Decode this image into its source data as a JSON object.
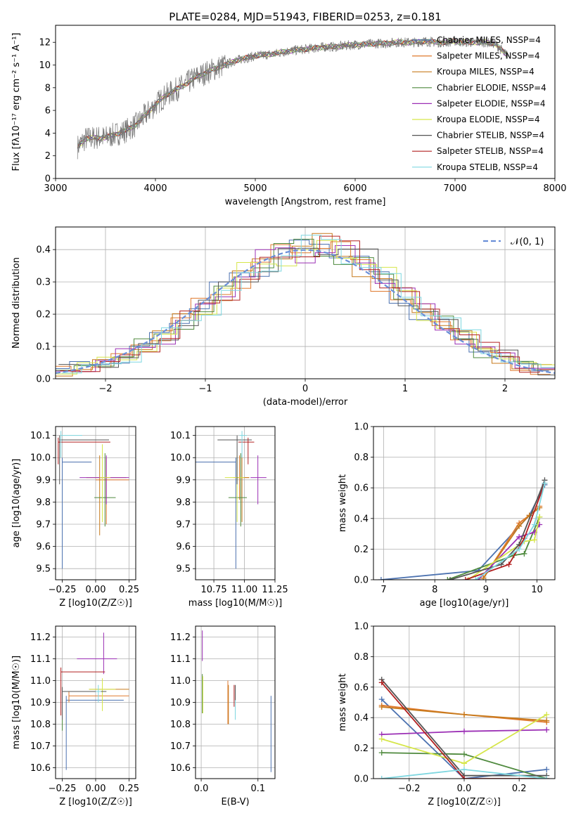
{
  "figure_title": "PLATE=0284, MJD=51943, FIBERID=0253, z=0.181",
  "colors": {
    "Chabrier MILES": "#4c72b0",
    "Salpeter MILES": "#e07a2f",
    "Kroupa MILES": "#c77a1c",
    "Chabrier ELODIE": "#4f8a3e",
    "Salpeter ELODIE": "#9b2fb5",
    "Kroupa ELODIE": "#d6e64a",
    "Chabrier STELIB": "#555555",
    "Salpeter STELIB": "#b22020",
    "Kroupa STELIB": "#7fd7e0",
    "normal_curve": "#6a8fd8",
    "grid": "#b0b0b0"
  },
  "chart_data": [
    {
      "id": "spectrum",
      "type": "line",
      "title": "PLATE=0284, MJD=51943, FIBERID=0253, z=0.181",
      "xlabel": "wavelength [Angstrom, rest frame]",
      "ylabel": "Flux [fλ10⁻¹⁷ erg cm⁻² s⁻¹ A⁻¹]",
      "xlim": [
        3000,
        8000
      ],
      "ylim": [
        0,
        13.5
      ],
      "xticks": [
        "3000",
        "4000",
        "5000",
        "6000",
        "7000",
        "8000"
      ],
      "yticks": [
        "0",
        "2",
        "4",
        "6",
        "8",
        "10",
        "12"
      ],
      "legend_position": "right",
      "legend": [
        "Chabrier MILES, NSSP=4",
        "Salpeter MILES, NSSP=4",
        "Kroupa MILES, NSSP=4",
        "Chabrier ELODIE, NSSP=4",
        "Salpeter ELODIE, NSSP=4",
        "Kroupa ELODIE, NSSP=4",
        "Chabrier STELIB, NSSP=4",
        "Salpeter STELIB, NSSP=4",
        "Kroupa STELIB, NSSP=4"
      ],
      "data_curve": {
        "x": [
          3220,
          3300,
          3400,
          3500,
          3600,
          3700,
          3800,
          3900,
          4000,
          4100,
          4200,
          4300,
          4400,
          4500,
          4600,
          4700,
          4800,
          4900,
          5000,
          5100,
          5200,
          5300,
          5400,
          5500,
          5600,
          5700,
          5800,
          5900,
          6000,
          6100,
          6200,
          6300,
          6400,
          6500,
          6600,
          6700,
          6800,
          6900,
          7000,
          7100,
          7200,
          7300,
          7400,
          7500,
          7530
        ],
        "y": [
          2.8,
          3.5,
          3.6,
          3.6,
          3.9,
          4.2,
          4.7,
          5.6,
          6.5,
          7.3,
          7.8,
          8.3,
          8.9,
          9.3,
          9.7,
          10.0,
          10.4,
          10.6,
          10.8,
          10.9,
          11.0,
          11.2,
          11.3,
          11.4,
          11.5,
          11.6,
          11.6,
          11.7,
          11.8,
          11.8,
          11.9,
          11.9,
          12.0,
          12.0,
          12.0,
          12.1,
          12.0,
          12.0,
          12.1,
          12.0,
          12.0,
          12.0,
          11.9,
          11.0,
          10.9
        ]
      }
    },
    {
      "id": "residuals",
      "type": "step",
      "xlabel": "(data-model)/error",
      "ylabel": "Normed distribution",
      "xlim": [
        -2.5,
        2.5
      ],
      "ylim": [
        0,
        0.47
      ],
      "xticks": [
        "−2",
        "−1",
        "0",
        "1",
        "2"
      ],
      "yticks": [
        "0.0",
        "0.1",
        "0.2",
        "0.3",
        "0.4"
      ],
      "legend_position": "top-right",
      "legend": [
        "𝒩(0, 1)"
      ],
      "bin_edges": [
        -2.5,
        -2.3,
        -2.1,
        -1.9,
        -1.7,
        -1.5,
        -1.3,
        -1.1,
        -0.9,
        -0.7,
        -0.5,
        -0.3,
        -0.1,
        0.1,
        0.3,
        0.5,
        0.7,
        0.9,
        1.1,
        1.3,
        1.5,
        1.7,
        1.9,
        2.1,
        2.3,
        2.5
      ],
      "hist_mean": [
        0.025,
        0.035,
        0.05,
        0.07,
        0.1,
        0.13,
        0.18,
        0.22,
        0.27,
        0.32,
        0.36,
        0.39,
        0.4,
        0.41,
        0.39,
        0.36,
        0.31,
        0.26,
        0.21,
        0.17,
        0.13,
        0.09,
        0.07,
        0.04,
        0.03
      ]
    },
    {
      "id": "age_vs_Z",
      "type": "errorbar",
      "xlabel": "Z [log10(Z/Z☉)]",
      "ylabel": "age  [log10(age/yr)]",
      "xlim": [
        -0.3,
        0.3
      ],
      "ylim": [
        9.45,
        10.14
      ],
      "xticks": [
        "−0.25",
        "0.00",
        "0.25"
      ],
      "yticks": [
        "9.5",
        "9.6",
        "9.7",
        "9.8",
        "9.9",
        "10.0",
        "10.1"
      ],
      "points": [
        {
          "model": "Chabrier MILES",
          "x": -0.25,
          "xerr": [
            0.0,
            0.22
          ],
          "y": 9.98,
          "yerr": [
            0.48,
            0.02
          ]
        },
        {
          "model": "Salpeter MILES",
          "x": 0.08,
          "xerr": [
            0.08,
            0.17
          ],
          "y": 9.9,
          "yerr": [
            0.2,
            0.1
          ]
        },
        {
          "model": "Kroupa MILES",
          "x": 0.03,
          "xerr": [
            0.1,
            0.2
          ],
          "y": 9.91,
          "yerr": [
            0.26,
            0.1
          ]
        },
        {
          "model": "Chabrier ELODIE",
          "x": 0.07,
          "xerr": [
            0.08,
            0.08
          ],
          "y": 9.82,
          "yerr": [
            0.13,
            0.2
          ]
        },
        {
          "model": "Salpeter ELODIE",
          "x": 0.08,
          "xerr": [
            0.2,
            0.17
          ],
          "y": 9.91,
          "yerr": [
            0.12,
            0.1
          ]
        },
        {
          "model": "Kroupa ELODIE",
          "x": 0.05,
          "xerr": [
            0.02,
            0.06
          ],
          "y": 9.91,
          "yerr": [
            0.2,
            0.15
          ]
        },
        {
          "model": "Chabrier STELIB",
          "x": -0.27,
          "xerr": [
            0.0,
            0.37
          ],
          "y": 10.08,
          "yerr": [
            0.2,
            0.02
          ]
        },
        {
          "model": "Salpeter STELIB",
          "x": -0.28,
          "xerr": [
            0.0,
            0.39
          ],
          "y": 10.07,
          "yerr": [
            0.1,
            0.02
          ]
        },
        {
          "model": "Kroupa STELIB",
          "x": -0.26,
          "xerr": [
            0.0,
            0.16
          ],
          "y": 10.1,
          "yerr": [
            0.1,
            0.02
          ]
        }
      ]
    },
    {
      "id": "age_vs_mass",
      "type": "errorbar",
      "xlabel": "mass [log10(M/M☉)]",
      "ylabel": "",
      "xlim": [
        10.6,
        11.25
      ],
      "ylim": [
        9.45,
        10.14
      ],
      "xticks": [
        "10.75",
        "11.00",
        "11.25"
      ],
      "yticks": [
        "9.5",
        "9.6",
        "9.7",
        "9.8",
        "9.9",
        "10.0",
        "10.1"
      ],
      "points": [
        {
          "model": "Chabrier MILES",
          "x": 10.93,
          "xerr": [
            0.33,
            0.0
          ],
          "y": 9.98,
          "yerr": [
            0.48,
            0.02
          ]
        },
        {
          "model": "Salpeter MILES",
          "x": 10.96,
          "xerr": [
            0.05,
            0.08
          ],
          "y": 9.91,
          "yerr": [
            0.1,
            0.1
          ]
        },
        {
          "model": "Kroupa MILES",
          "x": 10.98,
          "xerr": [
            0.05,
            0.06
          ],
          "y": 9.91,
          "yerr": [
            0.2,
            0.1
          ]
        },
        {
          "model": "Chabrier ELODIE",
          "x": 10.97,
          "xerr": [
            0.1,
            0.05
          ],
          "y": 9.82,
          "yerr": [
            0.13,
            0.2
          ]
        },
        {
          "model": "Salpeter ELODIE",
          "x": 11.11,
          "xerr": [
            0.06,
            0.07
          ],
          "y": 9.91,
          "yerr": [
            0.12,
            0.1
          ]
        },
        {
          "model": "Kroupa ELODIE",
          "x": 10.94,
          "xerr": [
            0.1,
            0.06
          ],
          "y": 9.91,
          "yerr": [
            0.2,
            0.1
          ]
        },
        {
          "model": "Chabrier STELIB",
          "x": 10.94,
          "xerr": [
            0.16,
            0.12
          ],
          "y": 10.08,
          "yerr": [
            0.2,
            0.02
          ]
        },
        {
          "model": "Salpeter STELIB",
          "x": 11.03,
          "xerr": [
            0.08,
            0.05
          ],
          "y": 10.07,
          "yerr": [
            0.1,
            0.02
          ]
        },
        {
          "model": "Kroupa STELIB",
          "x": 10.98,
          "xerr": [
            0.02,
            0.04
          ],
          "y": 10.1,
          "yerr": [
            0.1,
            0.02
          ]
        }
      ]
    },
    {
      "id": "weight_vs_age",
      "type": "line",
      "xlabel": "age  [log10(age/yr)]",
      "ylabel": "mass weight",
      "xlim": [
        6.8,
        10.35
      ],
      "ylim": [
        0,
        1.0
      ],
      "xticks": [
        "7",
        "8",
        "9",
        "10"
      ],
      "yticks": [
        "0.0",
        "0.2",
        "0.4",
        "0.6",
        "0.8",
        "1.0"
      ],
      "series": [
        {
          "model": "Chabrier MILES",
          "x": [
            6.95,
            8.85,
            9.85,
            10.15
          ],
          "y": [
            0.0,
            0.06,
            0.42,
            0.62
          ]
        },
        {
          "model": "Salpeter MILES",
          "x": [
            8.95,
            9.65,
            9.85,
            10.05
          ],
          "y": [
            0.01,
            0.37,
            0.42,
            0.48
          ]
        },
        {
          "model": "Kroupa MILES",
          "x": [
            8.95,
            9.65,
            9.85,
            10.05
          ],
          "y": [
            0.01,
            0.35,
            0.42,
            0.47
          ]
        },
        {
          "model": "Chabrier ELODIE",
          "x": [
            8.25,
            9.55,
            9.75,
            10.05
          ],
          "y": [
            0.0,
            0.16,
            0.17,
            0.41
          ]
        },
        {
          "model": "Salpeter ELODIE",
          "x": [
            8.85,
            9.65,
            9.95,
            10.05
          ],
          "y": [
            0.0,
            0.28,
            0.31,
            0.36
          ]
        },
        {
          "model": "Kroupa ELODIE",
          "x": [
            8.65,
            9.75,
            9.95,
            10.05
          ],
          "y": [
            0.0,
            0.25,
            0.26,
            0.41
          ]
        },
        {
          "model": "Chabrier STELIB",
          "x": [
            8.3,
            9.3,
            9.65,
            10.15
          ],
          "y": [
            0.0,
            0.1,
            0.23,
            0.65
          ]
        },
        {
          "model": "Salpeter STELIB",
          "x": [
            8.6,
            9.45,
            9.75,
            10.15
          ],
          "y": [
            0.0,
            0.1,
            0.27,
            0.63
          ]
        },
        {
          "model": "Kroupa STELIB",
          "x": [
            8.8,
            9.65,
            9.95,
            10.15
          ],
          "y": [
            0.0,
            0.2,
            0.36,
            0.63
          ]
        }
      ]
    },
    {
      "id": "mass_vs_Z",
      "type": "errorbar",
      "xlabel": "Z [log10(Z/Z☉)]",
      "ylabel": "mass [log10(M/M☉)]",
      "xlim": [
        -0.3,
        0.3
      ],
      "ylim": [
        10.55,
        11.25
      ],
      "xticks": [
        "−0.25",
        "0.00",
        "0.25"
      ],
      "yticks": [
        "10.6",
        "10.7",
        "10.8",
        "10.9",
        "11.0",
        "11.1",
        "11.2"
      ],
      "points": [
        {
          "model": "Chabrier MILES",
          "x": -0.22,
          "xerr": [
            0.0,
            0.43
          ],
          "y": 10.91,
          "yerr": [
            0.32,
            0.02
          ]
        },
        {
          "model": "Salpeter MILES",
          "x": -0.2,
          "xerr": [
            0.0,
            0.45
          ],
          "y": 10.93,
          "yerr": [
            0.03,
            0.02
          ]
        },
        {
          "model": "Kroupa MILES",
          "x": 0.05,
          "xerr": [
            0.1,
            0.2
          ],
          "y": 10.96,
          "yerr": [
            0.05,
            0.05
          ]
        },
        {
          "model": "Chabrier ELODIE",
          "x": -0.25,
          "xerr": [
            0.0,
            0.33
          ],
          "y": 10.95,
          "yerr": [
            0.18,
            0.02
          ]
        },
        {
          "model": "Salpeter ELODIE",
          "x": 0.06,
          "xerr": [
            0.2,
            0.1
          ],
          "y": 11.1,
          "yerr": [
            0.07,
            0.12
          ]
        },
        {
          "model": "Kroupa ELODIE",
          "x": 0.05,
          "xerr": [
            0.1,
            0.1
          ],
          "y": 10.96,
          "yerr": [
            0.1,
            0.05
          ]
        },
        {
          "model": "Chabrier STELIB",
          "x": -0.25,
          "xerr": [
            0.0,
            0.33
          ],
          "y": 10.95,
          "yerr": [
            0.13,
            0.02
          ]
        },
        {
          "model": "Salpeter STELIB",
          "x": -0.26,
          "xerr": [
            0.0,
            0.33
          ],
          "y": 11.04,
          "yerr": [
            0.2,
            0.02
          ]
        },
        {
          "model": "Kroupa STELIB",
          "x": 0.02,
          "xerr": [
            0.02,
            0.02
          ],
          "y": 10.95,
          "yerr": [
            0.05,
            0.03
          ]
        }
      ]
    },
    {
      "id": "mass_vs_ebv",
      "type": "errorbar",
      "xlabel": "E(B-V)",
      "ylabel": "",
      "xlim": [
        -0.01,
        0.13
      ],
      "ylim": [
        10.55,
        11.25
      ],
      "xticks": [
        "0.0",
        "0.1"
      ],
      "yticks": [
        "10.6",
        "10.7",
        "10.8",
        "10.9",
        "11.0",
        "11.1",
        "11.2"
      ],
      "points": [
        {
          "model": "Chabrier MILES",
          "x": 0.123,
          "xerr": [
            0.0,
            0.0
          ],
          "y": 10.91,
          "yerr": [
            0.33,
            0.02
          ]
        },
        {
          "model": "Salpeter MILES",
          "x": 0.047,
          "xerr": [
            0.0,
            0.0
          ],
          "y": 10.95,
          "yerr": [
            0.15,
            0.05
          ]
        },
        {
          "model": "Kroupa MILES",
          "x": 0.048,
          "xerr": [
            0.0,
            0.0
          ],
          "y": 10.93,
          "yerr": [
            0.13,
            0.05
          ]
        },
        {
          "model": "Chabrier ELODIE",
          "x": 0.002,
          "xerr": [
            0.0,
            0.0
          ],
          "y": 10.95,
          "yerr": [
            0.1,
            0.08
          ]
        },
        {
          "model": "Salpeter ELODIE",
          "x": 0.002,
          "xerr": [
            0.0,
            0.0
          ],
          "y": 11.11,
          "yerr": [
            0.02,
            0.12
          ]
        },
        {
          "model": "Kroupa ELODIE",
          "x": 0.003,
          "xerr": [
            0.0,
            0.0
          ],
          "y": 10.97,
          "yerr": [
            0.12,
            0.05
          ]
        },
        {
          "model": "Chabrier STELIB",
          "x": 0.06,
          "xerr": [
            0.0,
            0.0
          ],
          "y": 10.92,
          "yerr": [
            0.04,
            0.06
          ]
        },
        {
          "model": "Salpeter STELIB",
          "x": 0.058,
          "xerr": [
            0.0,
            0.0
          ],
          "y": 10.92,
          "yerr": [
            0.04,
            0.06
          ]
        },
        {
          "model": "Kroupa STELIB",
          "x": 0.06,
          "xerr": [
            0.0,
            0.0
          ],
          "y": 10.88,
          "yerr": [
            0.06,
            0.03
          ]
        }
      ]
    },
    {
      "id": "weight_vs_Z",
      "type": "line",
      "xlabel": "Z [log10(Z/Z☉)]",
      "ylabel": "mass weight",
      "xlim": [
        -0.33,
        0.33
      ],
      "ylim": [
        0,
        1.0
      ],
      "xticks": [
        "−0.2",
        "0.0",
        "0.2"
      ],
      "yticks": [
        "0.0",
        "0.2",
        "0.4",
        "0.6",
        "0.8",
        "1.0"
      ],
      "series": [
        {
          "model": "Chabrier MILES",
          "x": [
            -0.3,
            0.0,
            0.3
          ],
          "y": [
            0.52,
            0.0,
            0.06
          ]
        },
        {
          "model": "Salpeter MILES",
          "x": [
            -0.3,
            0.0,
            0.3
          ],
          "y": [
            0.48,
            0.42,
            0.37
          ]
        },
        {
          "model": "Kroupa MILES",
          "x": [
            -0.3,
            0.0,
            0.3
          ],
          "y": [
            0.47,
            0.42,
            0.38
          ]
        },
        {
          "model": "Chabrier ELODIE",
          "x": [
            -0.3,
            0.0,
            0.3
          ],
          "y": [
            0.17,
            0.16,
            0.0
          ]
        },
        {
          "model": "Salpeter ELODIE",
          "x": [
            -0.3,
            0.0,
            0.3
          ],
          "y": [
            0.29,
            0.31,
            0.32
          ]
        },
        {
          "model": "Kroupa ELODIE",
          "x": [
            -0.3,
            0.0,
            0.3
          ],
          "y": [
            0.26,
            0.1,
            0.42
          ]
        },
        {
          "model": "Chabrier STELIB",
          "x": [
            -0.3,
            0.0,
            0.3
          ],
          "y": [
            0.65,
            0.02,
            0.02
          ]
        },
        {
          "model": "Salpeter STELIB",
          "x": [
            -0.3,
            0.0,
            0.3
          ],
          "y": [
            0.63,
            0.0,
            0.0
          ]
        },
        {
          "model": "Kroupa STELIB",
          "x": [
            -0.3,
            0.0,
            0.3
          ],
          "y": [
            0.0,
            0.06,
            0.0
          ]
        }
      ]
    }
  ]
}
